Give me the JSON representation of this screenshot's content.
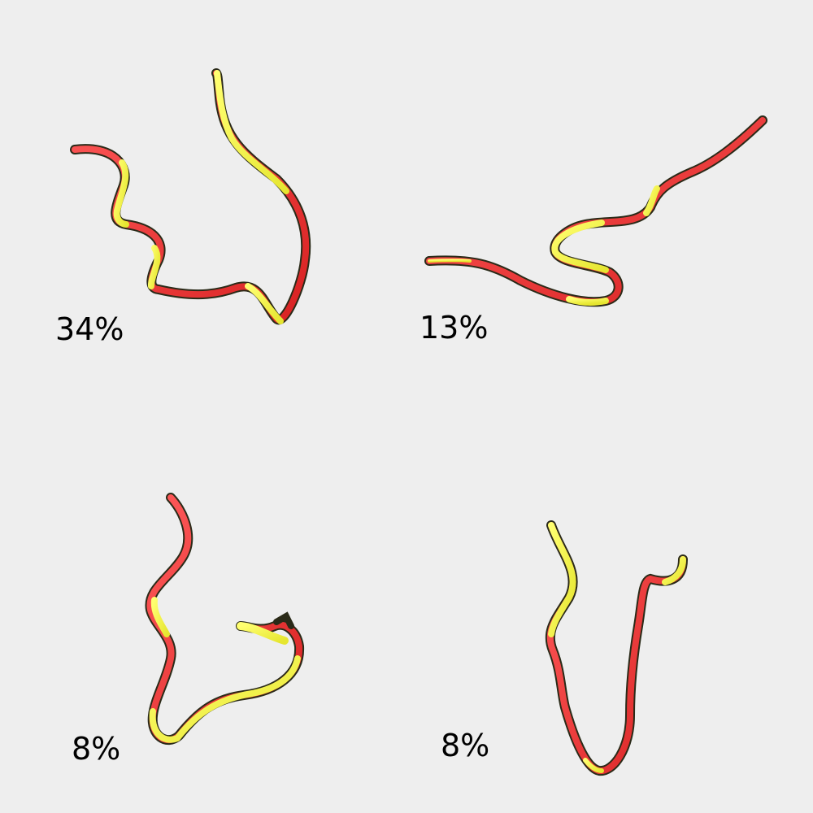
{
  "panels": [
    {
      "label": "34%"
    },
    {
      "label": "13%"
    },
    {
      "label": "8%"
    },
    {
      "label": "8%"
    }
  ],
  "colors": {
    "background": "#eeeeee",
    "ribbon_red": "#ee3333",
    "ribbon_yellow": "#f0f040",
    "ribbon_edge": "#2a2a18",
    "label_text": "#000000"
  }
}
